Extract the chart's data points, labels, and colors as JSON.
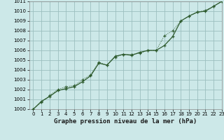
{
  "title": "Graphe pression niveau de la mer (hPa)",
  "bg_color": "#cce8e8",
  "grid_color": "#9bbfbf",
  "line_color": "#2d5a2d",
  "xlim": [
    -0.5,
    23
  ],
  "ylim": [
    1000,
    1011
  ],
  "xticks": [
    0,
    1,
    2,
    3,
    4,
    5,
    6,
    7,
    8,
    9,
    10,
    11,
    12,
    13,
    14,
    15,
    16,
    17,
    18,
    19,
    20,
    21,
    22,
    23
  ],
  "yticks": [
    1000,
    1001,
    1002,
    1003,
    1004,
    1005,
    1006,
    1007,
    1008,
    1009,
    1010,
    1011
  ],
  "series1_x": [
    0,
    1,
    2,
    3,
    4,
    5,
    6,
    7,
    8,
    9,
    10,
    11,
    12,
    13,
    14,
    15,
    16,
    17,
    18,
    19,
    20,
    21,
    22,
    23
  ],
  "series1_y": [
    1000.0,
    1000.8,
    1001.3,
    1001.9,
    1002.1,
    1002.3,
    1002.8,
    1003.4,
    1004.7,
    1004.5,
    1005.4,
    1005.6,
    1005.5,
    1005.8,
    1006.0,
    1006.0,
    1006.5,
    1007.4,
    1009.0,
    1009.5,
    1009.9,
    1010.0,
    1010.5,
    1011.0
  ],
  "series2_x": [
    0,
    1,
    2,
    3,
    4,
    5,
    6,
    7,
    8,
    9,
    10,
    11,
    12,
    13,
    14,
    15,
    16,
    17,
    18,
    19,
    20,
    21,
    22,
    23
  ],
  "series2_y": [
    1000.0,
    1000.7,
    1001.4,
    1002.0,
    1002.3,
    1002.4,
    1003.0,
    1003.5,
    1004.8,
    1004.5,
    1005.3,
    1005.6,
    1005.6,
    1005.7,
    1006.0,
    1006.0,
    1007.5,
    1008.0,
    1009.0,
    1009.5,
    1009.9,
    1010.1,
    1010.5,
    1011.0
  ],
  "title_fontsize": 6.5,
  "tick_fontsize": 5.0
}
